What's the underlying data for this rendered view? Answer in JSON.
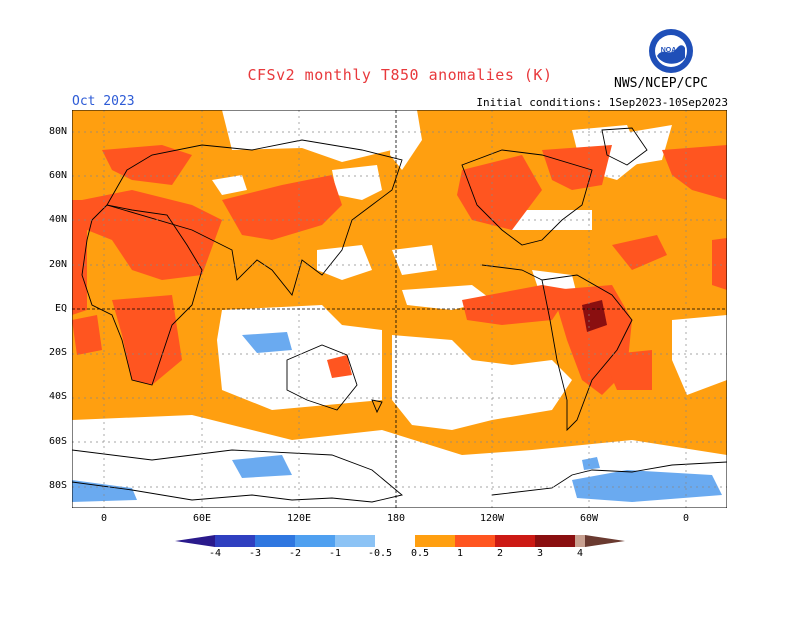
{
  "header": {
    "title": "CFSv2 monthly T850 anomalies (K)",
    "month": "Oct 2023",
    "initial_conditions": "Initial conditions: 1Sep2023-10Sep2023",
    "agency": "NWS/NCEP/CPC",
    "logo_text": "NOAA"
  },
  "map": {
    "lat_labels": [
      "80N",
      "60N",
      "40N",
      "20N",
      "EQ",
      "20S",
      "40S",
      "60S",
      "80S"
    ],
    "lon_labels": [
      "0",
      "60E",
      "120E",
      "180",
      "120W",
      "60W",
      "0"
    ],
    "colors": {
      "neg4": "#2a1a8c",
      "neg3": "#2f3fc0",
      "neg2": "#2f77e0",
      "neg1": "#4fa0f0",
      "neg05": "#8cc3f5",
      "pos05": "#ff9f10",
      "pos1": "#ff5520",
      "pos2": "#cc1a14",
      "pos3": "#8a0f10",
      "pos4": "#c8a090",
      "pos5": "#6a3a30",
      "coast": "#000000",
      "grid": "#888888"
    }
  },
  "legend": {
    "labels": [
      "-4",
      "-3",
      "-2",
      "-1",
      "-0.5",
      "0.5",
      "1",
      "2",
      "3",
      "4"
    ]
  }
}
